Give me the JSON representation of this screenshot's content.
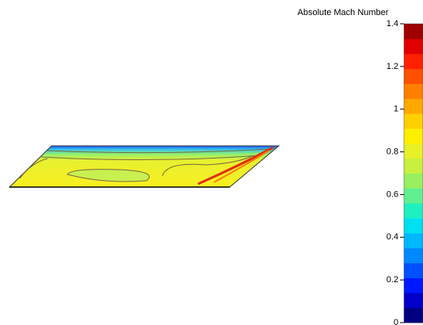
{
  "chart_data": {
    "type": "colorbar",
    "title": "Absolute Mach Number",
    "ylim": [
      0,
      1.4
    ],
    "yticks": [
      0,
      0.2,
      0.4,
      0.6,
      0.8,
      1,
      1.2,
      1.4
    ],
    "colormap": [
      "#000080",
      "#0000c8",
      "#0018ff",
      "#0050ff",
      "#0088ff",
      "#00b8ff",
      "#00e0f0",
      "#20f0c0",
      "#60f090",
      "#98f060",
      "#c8f040",
      "#e8f028",
      "#fff000",
      "#ffd000",
      "#ffa800",
      "#ff8000",
      "#ff5000",
      "#ff2000",
      "#e00000",
      "#a00000"
    ]
  }
}
